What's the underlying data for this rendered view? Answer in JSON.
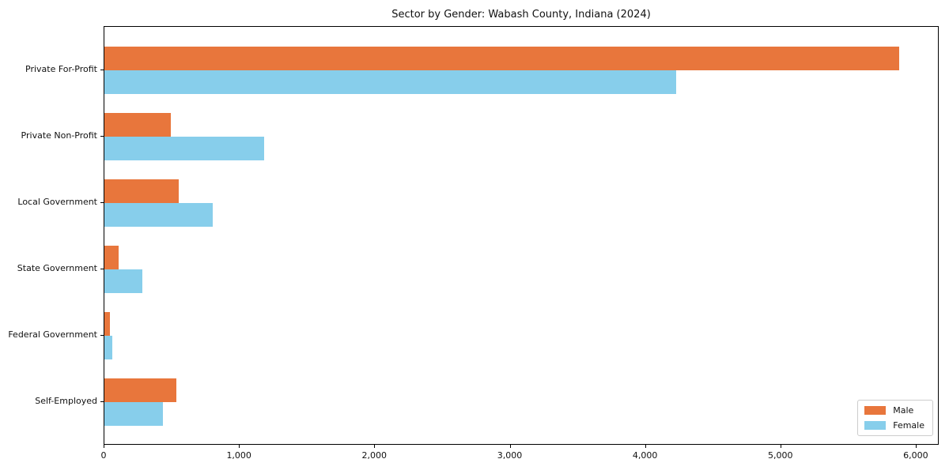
{
  "title": "Sector by Gender: Wabash County, Indiana (2024)",
  "chart_data": {
    "type": "bar",
    "orientation": "horizontal",
    "title": "Sector by Gender: Wabash County, Indiana (2024)",
    "categories": [
      "Private For-Profit",
      "Private Non-Profit",
      "Local Government",
      "State Government",
      "Federal Government",
      "Self-Employed"
    ],
    "series": [
      {
        "name": "Male",
        "color": "#E8763C",
        "values": [
          5870,
          490,
          550,
          105,
          42,
          530
        ]
      },
      {
        "name": "Female",
        "color": "#87CEEB",
        "values": [
          4225,
          1180,
          800,
          280,
          58,
          430
        ]
      }
    ],
    "xlabel": "",
    "ylabel": "",
    "xlim": [
      0,
      6170
    ],
    "xticks": [
      0,
      1000,
      2000,
      3000,
      4000,
      5000,
      6000
    ],
    "xtick_labels": [
      "0",
      "1,000",
      "2,000",
      "3,000",
      "4,000",
      "5,000",
      "6,000"
    ],
    "grid": false,
    "legend": {
      "position": "lower right",
      "entries": [
        "Male",
        "Female"
      ]
    }
  }
}
